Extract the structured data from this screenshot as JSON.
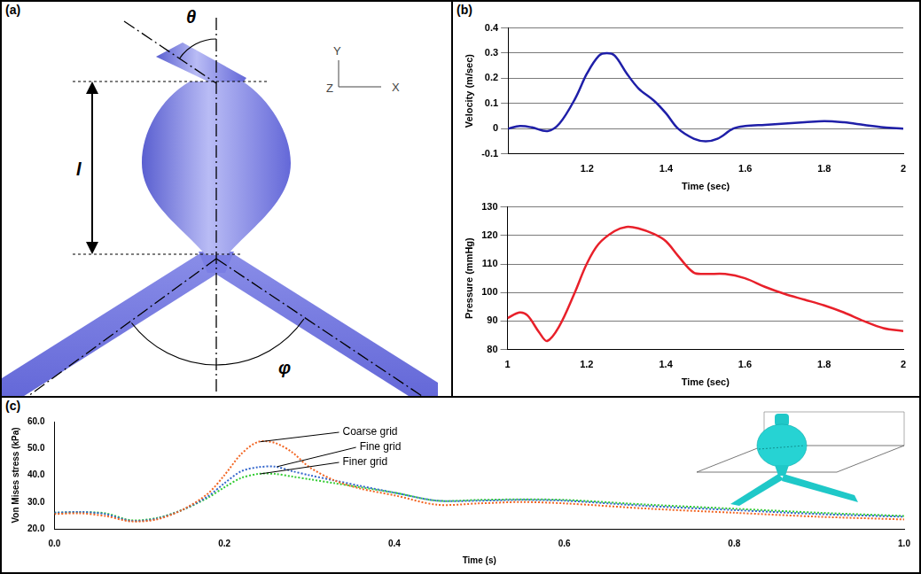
{
  "diagram": {
    "panel": "(a)",
    "angle_top": "θ",
    "length": "l",
    "angle_bifurcation": "φ",
    "axes": [
      "Y",
      "Z",
      "X"
    ]
  },
  "chart_data": [
    {
      "type": "line",
      "panel": "(b)",
      "x_label": "Time (sec)",
      "y_label": "Velocity (m/sec)",
      "x": [
        1.0,
        1.03,
        1.06,
        1.1,
        1.13,
        1.17,
        1.2,
        1.23,
        1.25,
        1.27,
        1.3,
        1.33,
        1.37,
        1.4,
        1.43,
        1.47,
        1.5,
        1.53,
        1.57,
        1.6,
        1.65,
        1.7,
        1.75,
        1.8,
        1.85,
        1.9,
        1.95,
        2.0
      ],
      "values": [
        0,
        0.01,
        0.005,
        -0.01,
        0.02,
        0.12,
        0.22,
        0.29,
        0.3,
        0.29,
        0.22,
        0.16,
        0.11,
        0.06,
        0.0,
        -0.04,
        -0.05,
        -0.04,
        0.0,
        0.01,
        0.015,
        0.02,
        0.025,
        0.03,
        0.025,
        0.015,
        0.005,
        0
      ],
      "color": "#1f1fa8",
      "xlim": [
        1,
        2
      ],
      "xticks": [
        1.2,
        1.4,
        1.6,
        1.8,
        2
      ],
      "ylim": [
        -0.1,
        0.4
      ],
      "yticks": [
        -0.1,
        0,
        0.1,
        0.2,
        0.3,
        0.4
      ],
      "grid": "y"
    },
    {
      "type": "line",
      "x_label": "Time (sec)",
      "y_label": "Pressure (mmHg)",
      "x": [
        1.0,
        1.03,
        1.05,
        1.08,
        1.1,
        1.13,
        1.17,
        1.2,
        1.23,
        1.27,
        1.3,
        1.33,
        1.37,
        1.4,
        1.43,
        1.47,
        1.5,
        1.55,
        1.6,
        1.65,
        1.7,
        1.75,
        1.8,
        1.85,
        1.9,
        1.95,
        2.0
      ],
      "values": [
        91,
        93,
        92,
        86,
        83,
        88,
        100,
        110,
        117,
        121.5,
        123,
        122.5,
        120.5,
        118,
        113,
        107,
        106.5,
        106.5,
        105,
        102,
        99.5,
        97.5,
        95.5,
        93,
        90,
        87.5,
        86.5
      ],
      "color": "#e8202a",
      "xlim": [
        1,
        2
      ],
      "xticks": [
        1,
        1.2,
        1.4,
        1.6,
        1.8,
        2
      ],
      "ylim": [
        80,
        130
      ],
      "yticks": [
        80,
        90,
        100,
        110,
        120,
        130
      ],
      "grid": "y"
    },
    {
      "type": "line",
      "panel": "(c)",
      "x_label": "Time (s)",
      "y_label": "Von Mises stress (kPa)",
      "x": [
        0,
        0.03,
        0.06,
        0.09,
        0.12,
        0.15,
        0.18,
        0.2,
        0.22,
        0.24,
        0.26,
        0.28,
        0.3,
        0.33,
        0.36,
        0.4,
        0.45,
        0.5,
        0.55,
        0.6,
        0.7,
        0.8,
        0.9,
        1.0
      ],
      "series": [
        {
          "name": "Coarse grid",
          "color": "#f26522",
          "line_style": "dotted",
          "values": [
            25.5,
            25.8,
            24.8,
            22.8,
            23.5,
            27,
            33,
            40,
            48,
            52.5,
            52,
            48.5,
            43,
            38,
            35,
            32.5,
            29,
            29.5,
            30,
            29.5,
            27.5,
            26,
            24.5,
            23.5
          ]
        },
        {
          "name": "Fine grid",
          "color": "#3366cc",
          "line_style": "dotted",
          "values": [
            26,
            26.3,
            25.5,
            23,
            23.8,
            27,
            32,
            37,
            41.5,
            43,
            43.2,
            41.5,
            40,
            38,
            36,
            33.5,
            30.5,
            30.5,
            30.8,
            30.5,
            28.5,
            27,
            25.5,
            24.5
          ]
        },
        {
          "name": "Finer grid",
          "color": "#33cc33",
          "line_style": "dotted",
          "values": [
            26,
            26.2,
            25.8,
            23.2,
            24,
            27,
            31.5,
            35.5,
            39,
            40.5,
            40.5,
            39.5,
            38.5,
            37,
            35.5,
            33.5,
            30.5,
            30.8,
            31,
            30.8,
            29,
            27.5,
            26,
            24.8
          ]
        }
      ],
      "xlim": [
        0,
        1
      ],
      "xticks": [
        {
          "value": 0,
          "label": "0.0"
        },
        {
          "value": 0.2,
          "label": "0.2"
        },
        {
          "value": 0.4,
          "label": "0.4"
        },
        {
          "value": 0.6,
          "label": "0.6"
        },
        {
          "value": 0.8,
          "label": "0.8"
        },
        {
          "value": 1,
          "label": "1.0"
        }
      ],
      "ylim": [
        20,
        60
      ],
      "yticks": [
        {
          "value": 20,
          "label": "20.0"
        },
        {
          "value": 30,
          "label": "30.0"
        },
        {
          "value": 40,
          "label": "40.0"
        },
        {
          "value": 50,
          "label": "50.0"
        },
        {
          "value": 60,
          "label": "60.0"
        }
      ],
      "grid": false
    }
  ]
}
